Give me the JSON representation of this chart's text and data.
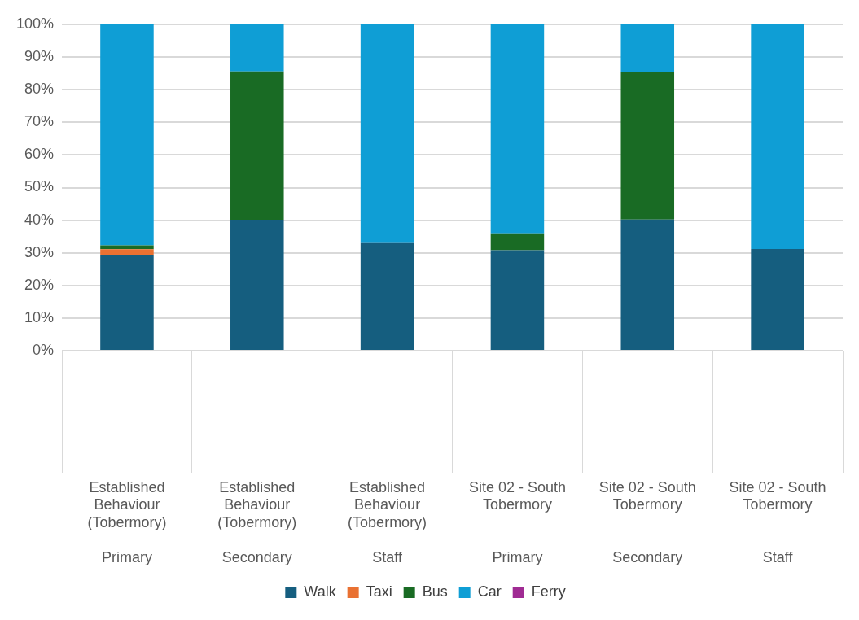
{
  "chart_data": {
    "type": "bar",
    "stacked": true,
    "categories": [
      "Established Behaviour (Tobermory)\nPrimary",
      "Established Behaviour (Tobermory)\nSecondary",
      "Established Behaviour (Tobermory)\nStaff",
      "Site 02 - South Tobermory\nPrimary",
      "Site 02 - South Tobermory\nSecondary",
      "Site 02 - South Tobermory\nStaff"
    ],
    "series": [
      {
        "name": "Walk",
        "color": "#155e7f",
        "values": [
          29.3,
          40,
          33,
          30.8,
          40.2,
          31.2
        ]
      },
      {
        "name": "Taxi",
        "color": "#e97132",
        "values": [
          1.8,
          0,
          0,
          0,
          0,
          0
        ]
      },
      {
        "name": "Bus",
        "color": "#196b24",
        "values": [
          1.2,
          45.6,
          0,
          5.2,
          45.2,
          0
        ]
      },
      {
        "name": "Car",
        "color": "#0f9ed5",
        "values": [
          67.7,
          14.4,
          67,
          64,
          14.6,
          68.8
        ]
      },
      {
        "name": "Ferry",
        "color": "#a02b93",
        "values": [
          0,
          0,
          0,
          0,
          0,
          0
        ]
      }
    ],
    "ylim": [
      0,
      100
    ],
    "yticks": [
      {
        "value": 0,
        "label": "0%"
      },
      {
        "value": 10,
        "label": "10%"
      },
      {
        "value": 20,
        "label": "20%"
      },
      {
        "value": 30,
        "label": "30%"
      },
      {
        "value": 40,
        "label": "40%"
      },
      {
        "value": 50,
        "label": "50%"
      },
      {
        "value": 60,
        "label": "60%"
      },
      {
        "value": 70,
        "label": "70%"
      },
      {
        "value": 80,
        "label": "80%"
      },
      {
        "value": 90,
        "label": "90%"
      },
      {
        "value": 100,
        "label": "100%"
      }
    ],
    "grid": "y",
    "legend": "bottom"
  }
}
